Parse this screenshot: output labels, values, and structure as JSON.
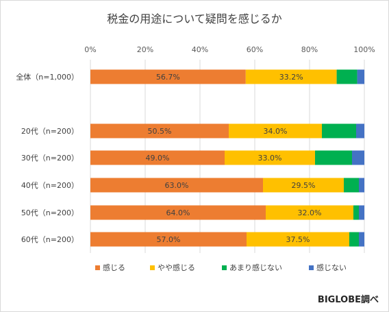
{
  "chart_data": {
    "type": "bar",
    "orientation": "horizontal",
    "stacked": true,
    "title": "税金の用途について疑問を感じるか",
    "xlim": [
      0,
      100
    ],
    "x_ticks": [
      "0%",
      "20%",
      "40%",
      "60%",
      "80%",
      "100%"
    ],
    "categories": [
      "全体（n=1,000）",
      "20代（n=200）",
      "30代（n=200）",
      "40代（n=200）",
      "50代（n=200）",
      "60代（n=200）"
    ],
    "series": [
      {
        "name": "感じる",
        "color": "#ED7D31",
        "values": [
          56.7,
          50.5,
          49.0,
          63.0,
          64.0,
          57.0
        ],
        "labels": [
          "56.7%",
          "50.5%",
          "49.0%",
          "63.0%",
          "64.0%",
          "57.0%"
        ]
      },
      {
        "name": "やや感じる",
        "color": "#FFC000",
        "values": [
          33.2,
          34.0,
          33.0,
          29.5,
          32.0,
          37.5
        ],
        "labels": [
          "33.2%",
          "34.0%",
          "33.0%",
          "29.5%",
          "32.0%",
          "37.5%"
        ]
      },
      {
        "name": "あまり感じない",
        "color": "#00B050",
        "values": [
          7.5,
          12.5,
          13.5,
          5.5,
          2.0,
          3.5
        ]
      },
      {
        "name": "感じない",
        "color": "#4472C4",
        "values": [
          2.6,
          3.0,
          4.5,
          2.0,
          2.0,
          2.0
        ]
      }
    ],
    "legend_position": "bottom",
    "grid": true
  },
  "footer": {
    "source": "BIGLOBE調べ"
  }
}
